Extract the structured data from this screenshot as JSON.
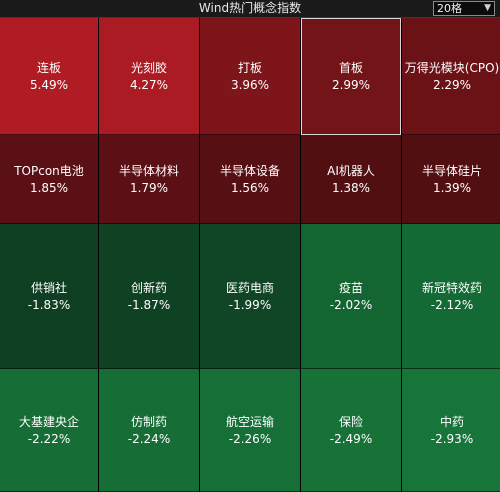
{
  "header": {
    "title": "Wind热门概念指数",
    "grid_select": {
      "value": "20格"
    }
  },
  "tiles": [
    {
      "name": "连板",
      "pct": "5.49%",
      "color": "#b01c24"
    },
    {
      "name": "光刻胶",
      "pct": "4.27%",
      "color": "#ab1b23"
    },
    {
      "name": "打板",
      "pct": "3.96%",
      "color": "#7d151b"
    },
    {
      "name": "首板",
      "pct": "2.99%",
      "color": "#731419",
      "selected": true
    },
    {
      "name": "万得光模块(CPO)",
      "pct": "2.29%",
      "color": "#6b1217"
    },
    {
      "name": "TOPcon电池",
      "pct": "1.85%",
      "color": "#5a1014"
    },
    {
      "name": "半导体材料",
      "pct": "1.79%",
      "color": "#5a1014"
    },
    {
      "name": "半导体设备",
      "pct": "1.56%",
      "color": "#560f13"
    },
    {
      "name": "AI机器人",
      "pct": "1.38%",
      "color": "#520f12"
    },
    {
      "name": "半导体硅片",
      "pct": "1.39%",
      "color": "#520f12"
    },
    {
      "name": "供销社",
      "pct": "-1.83%",
      "color": "#0f3f22"
    },
    {
      "name": "创新药",
      "pct": "-1.87%",
      "color": "#0f4123"
    },
    {
      "name": "医药电商",
      "pct": "-1.99%",
      "color": "#104526"
    },
    {
      "name": "疫苗",
      "pct": "-2.02%",
      "color": "#136532"
    },
    {
      "name": "新冠特效药",
      "pct": "-2.12%",
      "color": "#136a34"
    },
    {
      "name": "大基建央企",
      "pct": "-2.22%",
      "color": "#166e36"
    },
    {
      "name": "仿制药",
      "pct": "-2.24%",
      "color": "#166e36"
    },
    {
      "name": "航空运输",
      "pct": "-2.26%",
      "color": "#166f37"
    },
    {
      "name": "保险",
      "pct": "-2.49%",
      "color": "#177238"
    },
    {
      "name": "中药",
      "pct": "-2.93%",
      "color": "#187539"
    }
  ]
}
